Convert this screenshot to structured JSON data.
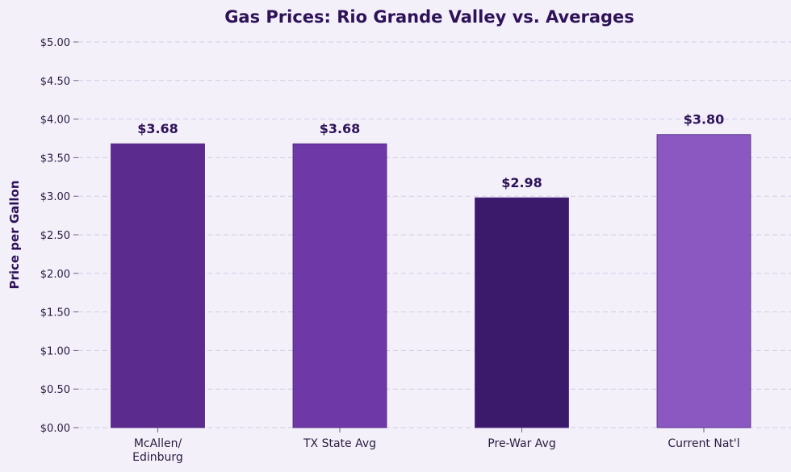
{
  "chart_data": {
    "type": "bar",
    "title": "Gas Prices: Rio Grande Valley vs. Averages",
    "xlabel": "",
    "ylabel": "Price per Gallon",
    "categories": [
      [
        "McAllen/",
        "Edinburg"
      ],
      [
        "TX State Avg"
      ],
      [
        "Pre-War Avg"
      ],
      [
        "Current Nat'l"
      ]
    ],
    "values": [
      3.68,
      3.68,
      2.98,
      3.8
    ],
    "value_labels": [
      "$3.68",
      "$3.68",
      "$2.98",
      "$3.80"
    ],
    "colors": [
      "#5b2c8e",
      "#6e38a6",
      "#3c1a6b",
      "#8a58c0"
    ],
    "ylim": [
      0,
      5
    ],
    "yticks": [
      0,
      0.5,
      1,
      1.5,
      2,
      2.5,
      3,
      3.5,
      4,
      4.5,
      5
    ],
    "ytick_labels": [
      "$0.00",
      "$0.50",
      "$1.00",
      "$1.50",
      "$2.00",
      "$2.50",
      "$3.00",
      "$3.50",
      "$4.00",
      "$4.50",
      "$5.00"
    ],
    "grid": "horizontal dashed",
    "legend": "none"
  }
}
